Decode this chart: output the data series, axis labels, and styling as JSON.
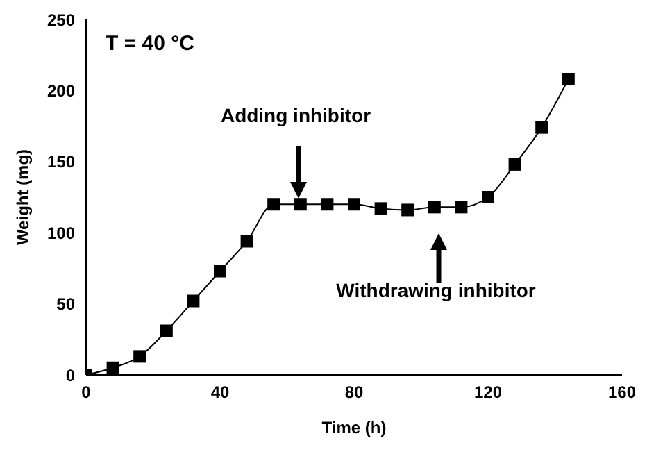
{
  "chart_data": {
    "type": "line",
    "xlabel": "Time (h)",
    "ylabel": "Weight (mg)",
    "x": [
      0,
      8,
      16,
      24,
      32,
      40,
      48,
      56,
      64,
      72,
      80,
      88,
      96,
      104,
      112,
      120,
      128,
      136,
      144
    ],
    "series": [
      {
        "color": "#000000",
        "values": [
          0,
          5,
          13,
          31,
          52,
          73,
          94,
          120,
          120,
          120,
          120,
          117,
          116,
          118,
          118,
          125,
          148,
          174,
          208
        ]
      }
    ],
    "xlim": [
      0,
      160
    ],
    "xticks": [
      0,
      40,
      80,
      120,
      160
    ],
    "ylim": [
      0,
      250
    ],
    "yticks": [
      0,
      50,
      100,
      150,
      200,
      250
    ],
    "marker": "square",
    "grid": false,
    "legend": false,
    "annotations": [
      "T = 40 °C",
      "Adding inhibitor",
      "Withdrawing inhibitor"
    ]
  }
}
